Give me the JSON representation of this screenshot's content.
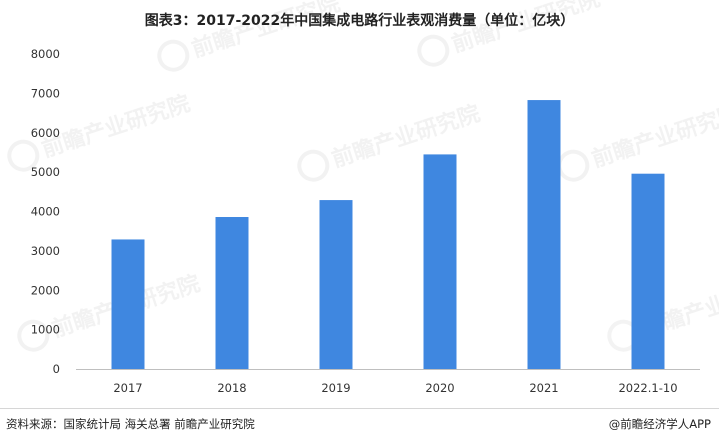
{
  "chart_data": {
    "type": "bar",
    "title": "图表3：2017-2022年中国集成电路行业表观消费量（单位：亿块）",
    "categories": [
      "2017",
      "2018",
      "2019",
      "2020",
      "2021",
      "2022.1-10"
    ],
    "values": [
      3290,
      3860,
      4290,
      5450,
      6830,
      4960
    ],
    "ylim": [
      0,
      8000
    ],
    "yticks": [
      0,
      1000,
      2000,
      3000,
      4000,
      5000,
      6000,
      7000,
      8000
    ],
    "bar_color": "#3f87e0",
    "grid": false,
    "legend": "none"
  },
  "footer": {
    "source": "资料来源：国家统计局 海关总署 前瞻产业研究院",
    "brand": "@前瞻经济学人APP"
  },
  "watermark": {
    "text": "前瞻产业研究院"
  }
}
